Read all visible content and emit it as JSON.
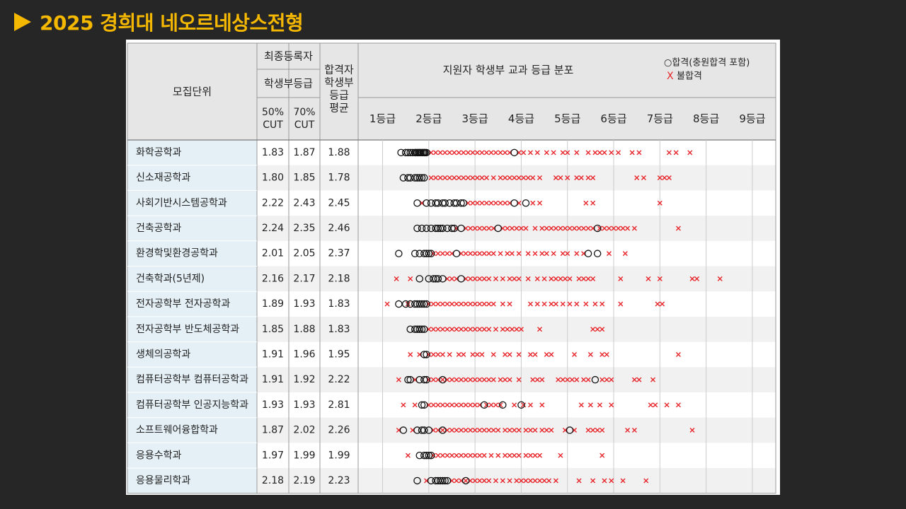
{
  "page": {
    "title": "2025 경희대 네오르네상스전형"
  },
  "header": {
    "unit_label": "모집단위",
    "final_registrant": "최종등록자",
    "student_record_grade": "학생부등급",
    "cut50": "50%\nCUT",
    "cut70": "70%\nCUT",
    "admitted_avg": "합격자\n학생부\n등급\n평균",
    "distribution": "지원자 학생부 교과 등급 분포"
  },
  "legend": {
    "pass": "○합격(충원합격 포함)",
    "fail_mark": "X",
    "fail": "불합격"
  },
  "chart_data": {
    "type": "scatter",
    "title": "지원자 학생부 교과 등급 분포",
    "x_ticks": [
      "1등급",
      "2등급",
      "3등급",
      "4등급",
      "5등급",
      "6등급",
      "7등급",
      "8등급",
      "9등급"
    ],
    "xlim": [
      1,
      9
    ],
    "legend": [
      "합격(충원합격 포함)",
      "불합격"
    ],
    "rows": [
      {
        "unit": "화학공학과",
        "cut50": "1.83",
        "cut70": "1.87",
        "avg": "1.88",
        "pass": [
          1.4,
          1.5,
          1.55,
          1.6,
          1.65,
          1.7,
          1.72,
          1.75,
          1.78,
          1.8,
          1.82,
          1.85,
          1.88,
          1.9,
          1.92,
          1.95,
          3.85
        ],
        "fail": [
          2.05,
          2.15,
          2.25,
          2.35,
          2.45,
          2.55,
          2.65,
          2.75,
          2.85,
          2.95,
          3.05,
          3.15,
          3.25,
          3.35,
          3.45,
          3.55,
          3.65,
          3.75,
          3.95,
          4.05,
          4.2,
          4.35,
          4.55,
          4.7,
          4.9,
          5.0,
          5.2,
          5.45,
          5.6,
          5.7,
          5.8,
          5.95,
          6.1,
          6.4,
          6.55,
          7.2,
          7.35,
          7.65
        ]
      },
      {
        "unit": "신소재공학과",
        "cut50": "1.80",
        "cut70": "1.85",
        "avg": "1.78",
        "pass": [
          1.45,
          1.55,
          1.6,
          1.7,
          1.75,
          1.8,
          1.85,
          1.9
        ],
        "fail": [
          2.05,
          2.15,
          2.25,
          2.35,
          2.45,
          2.55,
          2.65,
          2.75,
          2.85,
          2.95,
          3.05,
          3.15,
          3.25,
          3.4,
          3.55,
          3.65,
          3.75,
          3.85,
          3.95,
          4.05,
          4.15,
          4.25,
          4.4,
          4.75,
          4.85,
          5.0,
          5.2,
          5.3,
          5.45,
          5.55,
          6.5,
          6.65,
          7.0,
          7.1,
          7.2
        ]
      },
      {
        "unit": "사회기반시스템공학과",
        "cut50": "2.22",
        "cut70": "2.43",
        "avg": "2.45",
        "pass": [
          1.75,
          1.95,
          2.05,
          2.15,
          2.2,
          2.3,
          2.35,
          2.45,
          2.55,
          2.6,
          2.7,
          2.75,
          3.85,
          4.1
        ],
        "fail": [
          1.85,
          2.85,
          2.95,
          3.05,
          3.15,
          3.25,
          3.35,
          3.45,
          3.55,
          3.65,
          3.75,
          3.95,
          4.25,
          4.4,
          5.4,
          5.55,
          7.0
        ]
      },
      {
        "unit": "건축공학과",
        "cut50": "2.24",
        "cut70": "2.35",
        "avg": "2.46",
        "pass": [
          1.75,
          1.85,
          1.95,
          2.05,
          2.15,
          2.2,
          2.25,
          2.3,
          2.4,
          2.5,
          2.55,
          2.7,
          3.5,
          5.65
        ],
        "fail": [
          2.6,
          2.8,
          2.9,
          3.0,
          3.1,
          3.2,
          3.3,
          3.4,
          3.6,
          3.7,
          3.8,
          3.9,
          4.0,
          4.1,
          4.3,
          4.45,
          4.55,
          4.65,
          4.75,
          4.85,
          4.95,
          5.05,
          5.15,
          5.25,
          5.35,
          5.45,
          5.55,
          5.7,
          5.8,
          5.9,
          6.0,
          6.1,
          6.2,
          6.3,
          6.45,
          7.4
        ]
      },
      {
        "unit": "환경학및환경공학과",
        "cut50": "2.01",
        "cut70": "2.05",
        "avg": "2.37",
        "pass": [
          1.35,
          1.7,
          1.8,
          1.9,
          1.95,
          2.0,
          2.05,
          2.6,
          5.45,
          5.65
        ],
        "fail": [
          2.1,
          2.2,
          2.3,
          2.4,
          2.5,
          2.7,
          2.8,
          2.9,
          3.0,
          3.1,
          3.2,
          3.3,
          3.4,
          3.55,
          3.7,
          3.8,
          3.95,
          4.15,
          4.3,
          4.45,
          4.55,
          4.7,
          4.9,
          5.0,
          5.2,
          5.35,
          5.9,
          6.25
        ]
      },
      {
        "unit": "건축학과(5년제)",
        "cut50": "2.16",
        "cut70": "2.17",
        "avg": "2.18",
        "pass": [
          1.8,
          2.0,
          2.1,
          2.15,
          2.2,
          2.3,
          2.7
        ],
        "fail": [
          1.3,
          1.6,
          2.4,
          2.5,
          2.6,
          2.8,
          2.9,
          3.0,
          3.1,
          3.2,
          3.3,
          3.45,
          3.6,
          3.75,
          3.85,
          3.95,
          4.15,
          4.35,
          4.5,
          4.65,
          4.75,
          4.85,
          4.95,
          5.05,
          5.25,
          5.35,
          5.45,
          5.55,
          6.15,
          6.75,
          7.0,
          7.7,
          7.8,
          8.3
        ]
      },
      {
        "unit": "전자공학부 전자공학과",
        "cut50": "1.89",
        "cut70": "1.93",
        "avg": "1.83",
        "pass": [
          1.35,
          1.5,
          1.6,
          1.7,
          1.75,
          1.8,
          1.85,
          1.9,
          1.95
        ],
        "fail": [
          1.1,
          1.55,
          2.0,
          2.1,
          2.2,
          2.3,
          2.4,
          2.5,
          2.6,
          2.7,
          2.8,
          2.9,
          3.0,
          3.1,
          3.2,
          3.3,
          3.4,
          3.6,
          3.75,
          4.2,
          4.35,
          4.5,
          4.65,
          4.75,
          4.9,
          5.05,
          5.2,
          5.4,
          5.6,
          5.75,
          6.15,
          6.95,
          7.05
        ]
      },
      {
        "unit": "전자공학부 반도체공학과",
        "cut50": "1.85",
        "cut70": "1.88",
        "avg": "1.83",
        "pass": [
          1.6,
          1.7,
          1.75,
          1.8,
          1.85,
          1.9
        ],
        "fail": [
          2.0,
          2.1,
          2.2,
          2.3,
          2.4,
          2.5,
          2.6,
          2.7,
          2.8,
          2.9,
          3.0,
          3.1,
          3.2,
          3.3,
          3.45,
          3.6,
          3.7,
          3.8,
          3.9,
          4.0,
          4.4,
          5.55,
          5.65,
          5.75
        ]
      },
      {
        "unit": "생체의공학과",
        "cut50": "1.91",
        "cut70": "1.96",
        "avg": "1.95",
        "pass": [
          1.9,
          1.95
        ],
        "fail": [
          1.6,
          1.8,
          2.0,
          2.1,
          2.2,
          2.3,
          2.45,
          2.65,
          2.75,
          2.95,
          3.05,
          3.15,
          3.4,
          3.65,
          3.75,
          3.95,
          4.2,
          4.3,
          4.55,
          4.65,
          5.15,
          5.5,
          5.75,
          5.85,
          7.4
        ]
      },
      {
        "unit": "컴퓨터공학부 컴퓨터공학과",
        "cut50": "1.91",
        "cut70": "1.92",
        "avg": "2.22",
        "pass": [
          1.55,
          1.6,
          1.8,
          1.9,
          1.95,
          2.3,
          5.6
        ],
        "fail": [
          1.35,
          1.7,
          2.0,
          2.1,
          2.2,
          2.3,
          2.4,
          2.5,
          2.6,
          2.7,
          2.8,
          2.9,
          3.0,
          3.1,
          3.2,
          3.3,
          3.4,
          3.55,
          3.65,
          3.75,
          3.95,
          4.25,
          4.35,
          4.45,
          4.8,
          4.9,
          5.0,
          5.1,
          5.2,
          5.35,
          5.45,
          5.75,
          5.85,
          5.95,
          6.45,
          6.55,
          6.85
        ]
      },
      {
        "unit": "컴퓨터공학부 인공지능학과",
        "cut50": "1.93",
        "cut70": "1.93",
        "avg": "2.81",
        "pass": [
          1.85,
          1.9,
          3.2,
          3.6,
          4.0
        ],
        "fail": [
          1.45,
          1.7,
          2.0,
          2.1,
          2.2,
          2.3,
          2.4,
          2.5,
          2.6,
          2.7,
          2.8,
          2.9,
          3.0,
          3.1,
          3.25,
          3.35,
          3.45,
          3.55,
          3.85,
          4.05,
          4.2,
          4.45,
          5.3,
          5.5,
          5.7,
          5.95,
          6.8,
          6.9,
          7.15,
          7.4
        ]
      },
      {
        "unit": "소프트웨어융합학과",
        "cut50": "1.87",
        "cut70": "2.02",
        "avg": "2.26",
        "pass": [
          1.45,
          1.75,
          1.85,
          1.9,
          2.0,
          2.3,
          5.05
        ],
        "fail": [
          1.35,
          1.65,
          2.1,
          2.2,
          2.3,
          2.4,
          2.5,
          2.6,
          2.7,
          2.8,
          2.9,
          3.0,
          3.1,
          3.2,
          3.3,
          3.4,
          3.5,
          3.65,
          3.75,
          3.85,
          3.95,
          4.1,
          4.2,
          4.3,
          4.45,
          4.55,
          4.65,
          4.95,
          5.15,
          5.45,
          5.55,
          5.65,
          5.75,
          6.3,
          6.45,
          7.7
        ]
      },
      {
        "unit": "응용수학과",
        "cut50": "1.97",
        "cut70": "1.99",
        "avg": "1.99",
        "pass": [
          1.8,
          1.9,
          1.95,
          2.0,
          2.05
        ],
        "fail": [
          1.55,
          2.1,
          2.2,
          2.3,
          2.4,
          2.5,
          2.6,
          2.7,
          2.8,
          2.9,
          3.0,
          3.1,
          3.2,
          3.35,
          3.5,
          3.65,
          3.75,
          3.85,
          3.95,
          4.1,
          4.2,
          4.3,
          4.4,
          4.85,
          5.75
        ]
      },
      {
        "unit": "응용물리학과",
        "cut50": "2.18",
        "cut70": "2.19",
        "avg": "2.23",
        "pass": [
          1.75,
          2.05,
          2.15,
          2.2,
          2.25,
          2.3,
          2.35,
          2.4,
          2.8
        ],
        "fail": [
          1.95,
          2.5,
          2.6,
          2.7,
          2.8,
          2.9,
          3.0,
          3.1,
          3.2,
          3.3,
          3.45,
          3.6,
          3.75,
          3.9,
          4.0,
          4.1,
          4.2,
          4.3,
          4.4,
          4.5,
          4.6,
          4.75,
          5.25,
          5.55,
          5.8,
          5.95,
          6.2,
          6.7
        ]
      }
    ]
  }
}
